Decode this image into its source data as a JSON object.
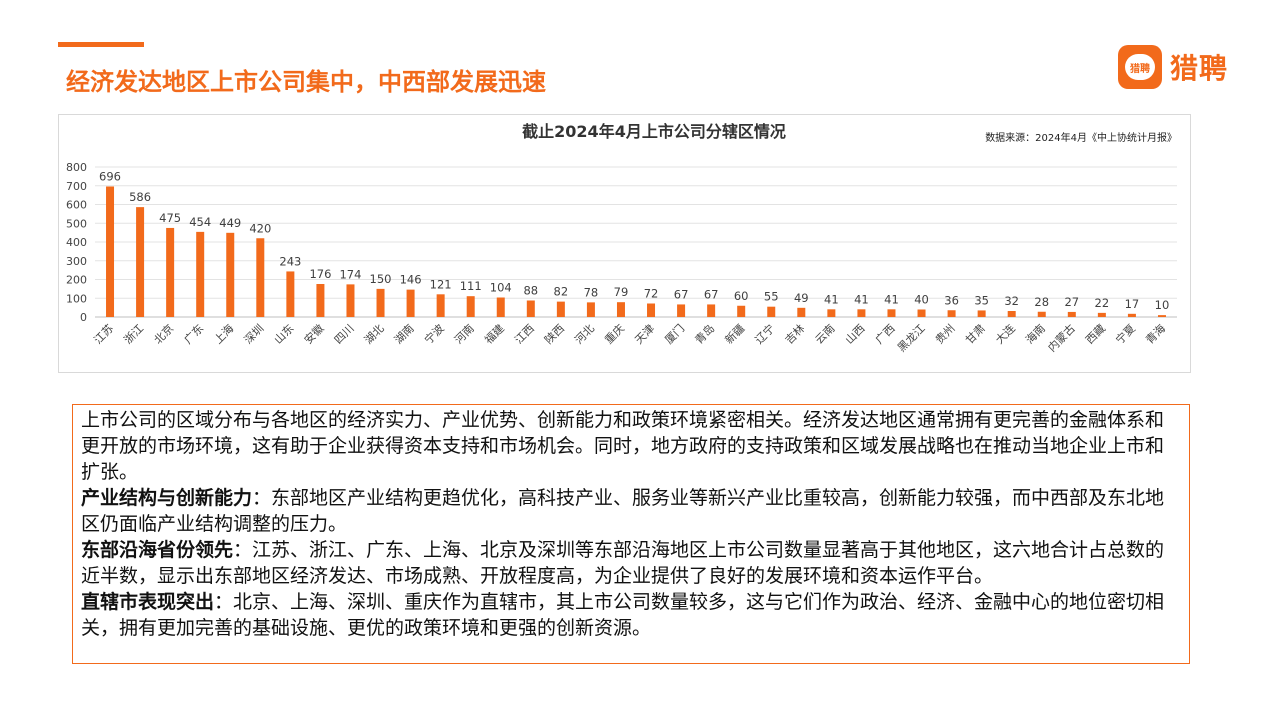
{
  "page": {
    "title": "经济发达地区上市公司集中，中西部发展迅速",
    "logo_text": "猎聘",
    "logo_mark_text": "猎聘"
  },
  "colors": {
    "accent": "#f26a1b",
    "bar": "#f26a1b"
  },
  "chart_data": {
    "type": "bar",
    "title": "截止2024年4月上市公司分辖区情况",
    "source": "数据来源：2024年4月《中上协统计月报》",
    "ylim": [
      0,
      800
    ],
    "yticks": [
      0,
      100,
      200,
      300,
      400,
      500,
      600,
      700,
      800
    ],
    "grid": true,
    "categories": [
      "江苏",
      "浙江",
      "北京",
      "广东",
      "上海",
      "深圳",
      "山东",
      "安徽",
      "四川",
      "湖北",
      "湖南",
      "宁波",
      "河南",
      "福建",
      "江西",
      "陕西",
      "河北",
      "重庆",
      "天津",
      "厦门",
      "青岛",
      "新疆",
      "辽宁",
      "吉林",
      "云南",
      "山西",
      "广西",
      "黑龙江",
      "贵州",
      "甘肃",
      "大连",
      "海南",
      "内蒙古",
      "西藏",
      "宁夏",
      "青海"
    ],
    "values": [
      696,
      586,
      475,
      454,
      449,
      420,
      243,
      176,
      174,
      150,
      146,
      121,
      111,
      104,
      88,
      82,
      78,
      79,
      72,
      67,
      67,
      60,
      55,
      49,
      41,
      41,
      41,
      40,
      36,
      35,
      32,
      28,
      27,
      22,
      17,
      10
    ]
  },
  "text": {
    "p1": "上市公司的区域分布与各地区的经济实力、产业优势、创新能力和政策环境紧密相关。经济发达地区通常拥有更完善的金融体系和更开放的市场环境，这有助于企业获得资本支持和市场机会。同时，地方政府的支持政策和区域发展战略也在推动当地企业上市和扩张。",
    "p2_head": "产业结构与创新能力",
    "p2_body": "：东部地区产业结构更趋优化，高科技产业、服务业等新兴产业比重较高，创新能力较强，而中西部及东北地区仍面临产业结构调整的压力。",
    "p3_head": "东部沿海省份领先",
    "p3_body": "：江苏、浙江、广东、上海、北京及深圳等东部沿海地区上市公司数量显著高于其他地区，这六地合计占总数的近半数，显示出东部地区经济发达、市场成熟、开放程度高，为企业提供了良好的发展环境和资本运作平台。",
    "p4_head": "直辖市表现突出",
    "p4_body": "：北京、上海、深圳、重庆作为直辖市，其上市公司数量较多，这与它们作为政治、经济、金融中心的地位密切相关，拥有更加完善的基础设施、更优的政策环境和更强的创新资源。"
  }
}
